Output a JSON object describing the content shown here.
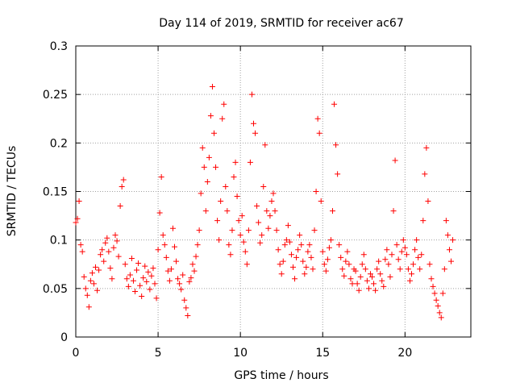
{
  "chart_data": {
    "type": "scatter",
    "title": "Day 114 of 2019, SRMTID for receiver ac67",
    "xlabel": "GPS time / hours",
    "ylabel": "SRMTID / TECUs",
    "xlim": [
      0,
      24
    ],
    "ylim": [
      0,
      0.3
    ],
    "xticks": [
      0,
      5,
      10,
      15,
      20
    ],
    "xtick_labels": [
      "0",
      "5",
      "10",
      "15",
      "20"
    ],
    "yticks": [
      0,
      0.05,
      0.1,
      0.15,
      0.2,
      0.25,
      0.3
    ],
    "ytick_labels": [
      "0",
      "0.05",
      "0.1",
      "0.15",
      "0.2",
      "0.25",
      "0.3"
    ],
    "grid": true,
    "marker": "plus",
    "marker_color": "#ff0000",
    "series": [
      {
        "name": "SRMTID",
        "points": [
          [
            0.0,
            0.118
          ],
          [
            0.1,
            0.122
          ],
          [
            0.2,
            0.14
          ],
          [
            0.3,
            0.095
          ],
          [
            0.4,
            0.088
          ],
          [
            0.5,
            0.062
          ],
          [
            0.6,
            0.05
          ],
          [
            0.7,
            0.043
          ],
          [
            0.8,
            0.031
          ],
          [
            0.9,
            0.058
          ],
          [
            1.0,
            0.066
          ],
          [
            1.1,
            0.055
          ],
          [
            1.2,
            0.072
          ],
          [
            1.3,
            0.048
          ],
          [
            1.4,
            0.069
          ],
          [
            1.5,
            0.085
          ],
          [
            1.6,
            0.09
          ],
          [
            1.7,
            0.078
          ],
          [
            1.8,
            0.097
          ],
          [
            1.9,
            0.102
          ],
          [
            2.0,
            0.088
          ],
          [
            2.1,
            0.071
          ],
          [
            2.2,
            0.06
          ],
          [
            2.3,
            0.092
          ],
          [
            2.4,
            0.105
          ],
          [
            2.5,
            0.099
          ],
          [
            2.6,
            0.083
          ],
          [
            2.7,
            0.135
          ],
          [
            2.8,
            0.155
          ],
          [
            2.9,
            0.162
          ],
          [
            3.0,
            0.075
          ],
          [
            3.1,
            0.06
          ],
          [
            3.2,
            0.052
          ],
          [
            3.3,
            0.064
          ],
          [
            3.4,
            0.081
          ],
          [
            3.5,
            0.058
          ],
          [
            3.6,
            0.047
          ],
          [
            3.7,
            0.069
          ],
          [
            3.8,
            0.076
          ],
          [
            3.9,
            0.053
          ],
          [
            4.0,
            0.042
          ],
          [
            4.1,
            0.061
          ],
          [
            4.2,
            0.073
          ],
          [
            4.3,
            0.057
          ],
          [
            4.4,
            0.067
          ],
          [
            4.5,
            0.049
          ],
          [
            4.6,
            0.063
          ],
          [
            4.7,
            0.071
          ],
          [
            4.8,
            0.055
          ],
          [
            4.9,
            0.04
          ],
          [
            5.0,
            0.09
          ],
          [
            5.1,
            0.128
          ],
          [
            5.2,
            0.165
          ],
          [
            5.3,
            0.105
          ],
          [
            5.4,
            0.095
          ],
          [
            5.5,
            0.082
          ],
          [
            5.6,
            0.068
          ],
          [
            5.7,
            0.058
          ],
          [
            5.8,
            0.07
          ],
          [
            5.9,
            0.112
          ],
          [
            6.0,
            0.093
          ],
          [
            6.1,
            0.078
          ],
          [
            6.2,
            0.06
          ],
          [
            6.3,
            0.055
          ],
          [
            6.4,
            0.049
          ],
          [
            6.5,
            0.064
          ],
          [
            6.6,
            0.038
          ],
          [
            6.7,
            0.03
          ],
          [
            6.8,
            0.022
          ],
          [
            6.9,
            0.057
          ],
          [
            7.0,
            0.061
          ],
          [
            7.1,
            0.075
          ],
          [
            7.2,
            0.068
          ],
          [
            7.3,
            0.083
          ],
          [
            7.4,
            0.095
          ],
          [
            7.5,
            0.11
          ],
          [
            7.6,
            0.148
          ],
          [
            7.7,
            0.195
          ],
          [
            7.8,
            0.175
          ],
          [
            7.9,
            0.13
          ],
          [
            8.0,
            0.16
          ],
          [
            8.1,
            0.185
          ],
          [
            8.2,
            0.228
          ],
          [
            8.3,
            0.258
          ],
          [
            8.4,
            0.21
          ],
          [
            8.5,
            0.175
          ],
          [
            8.6,
            0.12
          ],
          [
            8.7,
            0.1
          ],
          [
            8.8,
            0.14
          ],
          [
            8.9,
            0.225
          ],
          [
            9.0,
            0.24
          ],
          [
            9.1,
            0.155
          ],
          [
            9.2,
            0.13
          ],
          [
            9.3,
            0.095
          ],
          [
            9.4,
            0.085
          ],
          [
            9.5,
            0.11
          ],
          [
            9.6,
            0.165
          ],
          [
            9.7,
            0.18
          ],
          [
            9.8,
            0.145
          ],
          [
            9.9,
            0.12
          ],
          [
            10.0,
            0.105
          ],
          [
            10.1,
            0.125
          ],
          [
            10.2,
            0.098
          ],
          [
            10.3,
            0.088
          ],
          [
            10.4,
            0.075
          ],
          [
            10.5,
            0.11
          ],
          [
            10.6,
            0.18
          ],
          [
            10.7,
            0.25
          ],
          [
            10.8,
            0.22
          ],
          [
            10.9,
            0.21
          ],
          [
            11.0,
            0.135
          ],
          [
            11.1,
            0.118
          ],
          [
            11.2,
            0.097
          ],
          [
            11.3,
            0.105
          ],
          [
            11.4,
            0.155
          ],
          [
            11.5,
            0.198
          ],
          [
            11.6,
            0.13
          ],
          [
            11.7,
            0.112
          ],
          [
            11.8,
            0.125
          ],
          [
            11.9,
            0.14
          ],
          [
            12.0,
            0.148
          ],
          [
            12.1,
            0.13
          ],
          [
            12.2,
            0.11
          ],
          [
            12.3,
            0.09
          ],
          [
            12.4,
            0.075
          ],
          [
            12.5,
            0.065
          ],
          [
            12.6,
            0.078
          ],
          [
            12.7,
            0.095
          ],
          [
            12.8,
            0.1
          ],
          [
            12.9,
            0.115
          ],
          [
            13.0,
            0.098
          ],
          [
            13.1,
            0.085
          ],
          [
            13.2,
            0.072
          ],
          [
            13.3,
            0.06
          ],
          [
            13.4,
            0.082
          ],
          [
            13.5,
            0.09
          ],
          [
            13.6,
            0.105
          ],
          [
            13.7,
            0.095
          ],
          [
            13.8,
            0.078
          ],
          [
            13.9,
            0.065
          ],
          [
            14.0,
            0.072
          ],
          [
            14.1,
            0.088
          ],
          [
            14.2,
            0.095
          ],
          [
            14.3,
            0.082
          ],
          [
            14.4,
            0.07
          ],
          [
            14.5,
            0.11
          ],
          [
            14.6,
            0.15
          ],
          [
            14.7,
            0.225
          ],
          [
            14.8,
            0.21
          ],
          [
            14.9,
            0.14
          ],
          [
            15.0,
            0.088
          ],
          [
            15.1,
            0.075
          ],
          [
            15.2,
            0.068
          ],
          [
            15.3,
            0.08
          ],
          [
            15.4,
            0.092
          ],
          [
            15.5,
            0.1
          ],
          [
            15.6,
            0.13
          ],
          [
            15.7,
            0.24
          ],
          [
            15.8,
            0.198
          ],
          [
            15.9,
            0.168
          ],
          [
            16.0,
            0.095
          ],
          [
            16.1,
            0.082
          ],
          [
            16.2,
            0.07
          ],
          [
            16.3,
            0.063
          ],
          [
            16.4,
            0.078
          ],
          [
            16.5,
            0.088
          ],
          [
            16.6,
            0.075
          ],
          [
            16.7,
            0.06
          ],
          [
            16.8,
            0.055
          ],
          [
            16.9,
            0.07
          ],
          [
            17.0,
            0.068
          ],
          [
            17.1,
            0.055
          ],
          [
            17.2,
            0.048
          ],
          [
            17.3,
            0.062
          ],
          [
            17.4,
            0.075
          ],
          [
            17.5,
            0.085
          ],
          [
            17.6,
            0.07
          ],
          [
            17.7,
            0.058
          ],
          [
            17.8,
            0.05
          ],
          [
            17.9,
            0.065
          ],
          [
            18.0,
            0.062
          ],
          [
            18.1,
            0.055
          ],
          [
            18.2,
            0.048
          ],
          [
            18.3,
            0.07
          ],
          [
            18.4,
            0.078
          ],
          [
            18.5,
            0.065
          ],
          [
            18.6,
            0.058
          ],
          [
            18.7,
            0.052
          ],
          [
            18.8,
            0.08
          ],
          [
            18.9,
            0.09
          ],
          [
            19.0,
            0.075
          ],
          [
            19.1,
            0.062
          ],
          [
            19.2,
            0.085
          ],
          [
            19.3,
            0.13
          ],
          [
            19.4,
            0.182
          ],
          [
            19.5,
            0.095
          ],
          [
            19.6,
            0.08
          ],
          [
            19.7,
            0.07
          ],
          [
            19.8,
            0.088
          ],
          [
            19.9,
            0.1
          ],
          [
            20.0,
            0.092
          ],
          [
            20.1,
            0.085
          ],
          [
            20.2,
            0.07
          ],
          [
            20.3,
            0.058
          ],
          [
            20.4,
            0.065
          ],
          [
            20.5,
            0.075
          ],
          [
            20.6,
            0.09
          ],
          [
            20.7,
            0.1
          ],
          [
            20.8,
            0.082
          ],
          [
            20.9,
            0.07
          ],
          [
            21.0,
            0.085
          ],
          [
            21.1,
            0.12
          ],
          [
            21.2,
            0.168
          ],
          [
            21.3,
            0.195
          ],
          [
            21.4,
            0.14
          ],
          [
            21.5,
            0.075
          ],
          [
            21.6,
            0.06
          ],
          [
            21.7,
            0.052
          ],
          [
            21.8,
            0.045
          ],
          [
            21.9,
            0.038
          ],
          [
            22.0,
            0.032
          ],
          [
            22.1,
            0.025
          ],
          [
            22.2,
            0.02
          ],
          [
            22.3,
            0.045
          ],
          [
            22.4,
            0.07
          ],
          [
            22.5,
            0.12
          ],
          [
            22.6,
            0.105
          ],
          [
            22.7,
            0.09
          ],
          [
            22.8,
            0.078
          ],
          [
            22.9,
            0.1
          ]
        ]
      }
    ]
  }
}
